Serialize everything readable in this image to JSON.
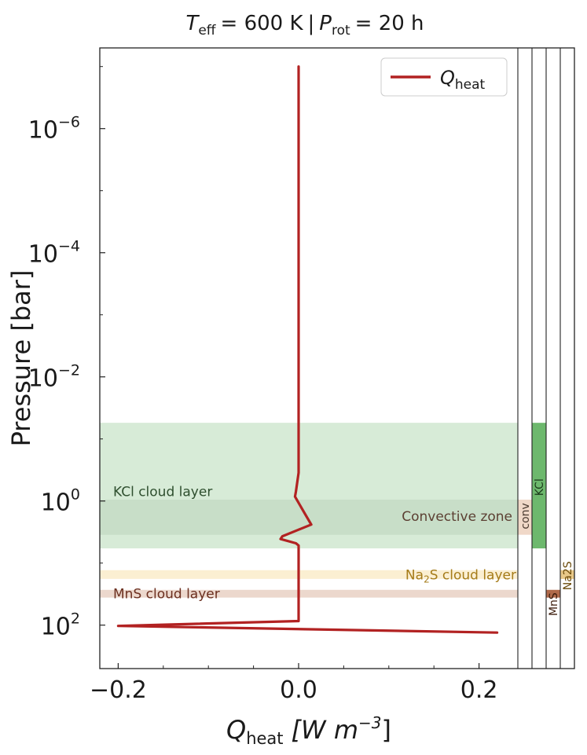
{
  "chart_data": {
    "type": "line",
    "title": {
      "teff_symbol": "T",
      "teff_sub": "eff",
      "teff_value": "= 600 K",
      "separator": "|",
      "prot_symbol": "P",
      "prot_sub": "rot",
      "prot_value": "= 20 h"
    },
    "xlabel": {
      "symbol": "Q",
      "sub": "heat",
      "unit_open": "[W m",
      "unit_exp": "−3",
      "unit_close": "]"
    },
    "ylabel": "Pressure [bar]",
    "xlim": [
      -0.225,
      0.24
    ],
    "ylim": [
      500,
      5e-08
    ],
    "y_scale": "log",
    "y_inverted": true,
    "xticks": [
      {
        "value": -0.2,
        "label": "−0.2"
      },
      {
        "value": 0.0,
        "label": "0.0"
      },
      {
        "value": 0.2,
        "label": "0.2"
      }
    ],
    "yticks": [
      {
        "value": 1e-06,
        "base": "10",
        "exp": "−6"
      },
      {
        "value": 0.0001,
        "base": "10",
        "exp": "−4"
      },
      {
        "value": 0.01,
        "base": "10",
        "exp": "−2"
      },
      {
        "value": 1,
        "base": "10",
        "exp": "0"
      },
      {
        "value": 100,
        "base": "10",
        "exp": "2"
      }
    ],
    "series": [
      {
        "name": "Q_heat",
        "legend_symbol": "Q",
        "legend_sub": "heat",
        "color": "#b22222",
        "points": [
          [
            0.0,
            1e-07
          ],
          [
            0.0,
            1e-05
          ],
          [
            0.0,
            0.001
          ],
          [
            0.0,
            0.02
          ],
          [
            0.0,
            0.2
          ],
          [
            0.0,
            0.35
          ],
          [
            -0.003,
            0.7
          ],
          [
            -0.004,
            0.85
          ],
          [
            0.002,
            1.2
          ],
          [
            0.008,
            1.7
          ],
          [
            0.014,
            2.4
          ],
          [
            0.0,
            2.9
          ],
          [
            -0.018,
            3.7
          ],
          [
            -0.02,
            4.1
          ],
          [
            -0.003,
            4.8
          ],
          [
            0.0,
            5.2
          ],
          [
            0.0,
            8
          ],
          [
            0.0,
            15
          ],
          [
            0.0,
            35
          ],
          [
            0.0,
            60
          ],
          [
            0.0,
            86
          ],
          [
            -0.2,
            103
          ],
          [
            0.22,
            132
          ]
        ]
      }
    ],
    "bands": [
      {
        "label": "KCl cloud layer",
        "p_top": 0.055,
        "p_bottom": 5.8,
        "color": "#d7ebd7",
        "text_color": "#2f4f2f"
      },
      {
        "label": "Convective zone",
        "p_top": 0.95,
        "p_bottom": 3.5,
        "color": "#c8dec8",
        "text_color": "#5c4033"
      },
      {
        "label_main": "Na",
        "label_sub": "2",
        "label_rest": "S cloud layer",
        "p_top": 13,
        "p_bottom": 18,
        "color": "#fbefd2",
        "text_color": "#a67c1a"
      },
      {
        "label": "MnS cloud layer",
        "p_top": 27,
        "p_bottom": 36,
        "color": "#ecd8cd",
        "text_color": "#6b2f1f"
      }
    ],
    "strips": [
      {
        "label": "conv",
        "p_top": 0.95,
        "p_bottom": 3.5,
        "color": "#f0d8c8",
        "text_color": "#4a3a30"
      },
      {
        "label": "KCl",
        "p_top": 0.055,
        "p_bottom": 5.8,
        "color": "#6db86d",
        "text_color": "#1a3a1a"
      },
      {
        "label": "MnS",
        "p_top": 27,
        "p_bottom": 36,
        "color": "#b06a4a",
        "text_color": "#3a1a0a"
      },
      {
        "label": "Na2S",
        "p_top": 13,
        "p_bottom": 18,
        "color": "#e8c888",
        "text_color": "#6a4a0a"
      }
    ],
    "legend": {
      "position": "top-right"
    },
    "grid": false
  }
}
